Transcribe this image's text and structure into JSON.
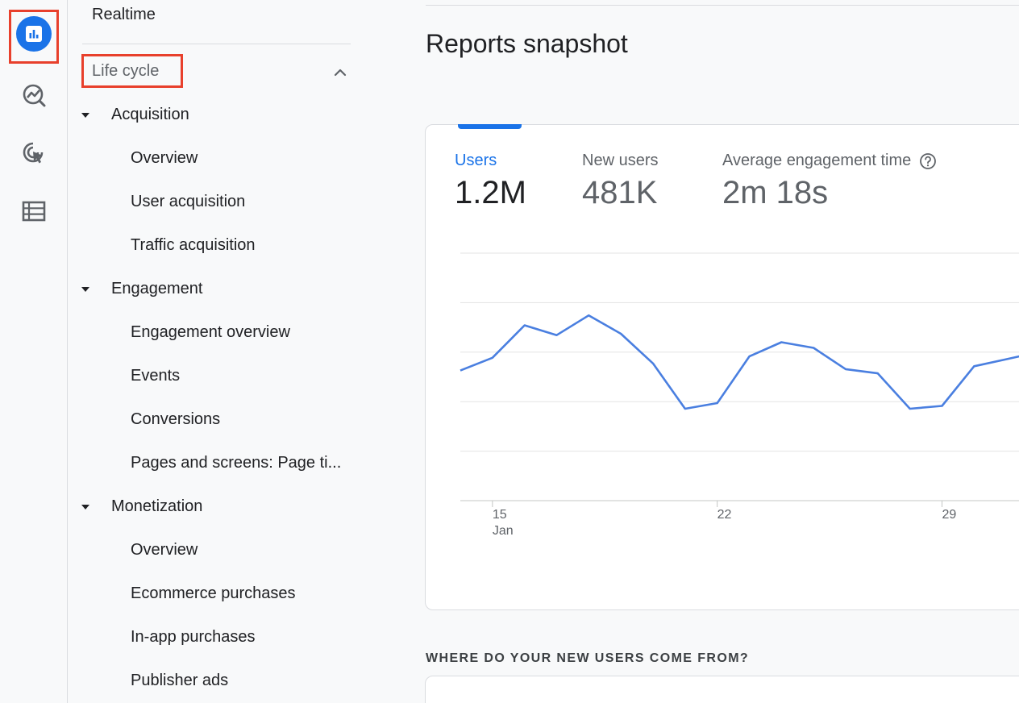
{
  "rail": {
    "items": [
      {
        "name": "reports-icon",
        "active": true
      },
      {
        "name": "explore-icon",
        "active": false
      },
      {
        "name": "advertising-icon",
        "active": false
      },
      {
        "name": "configure-icon",
        "active": false
      }
    ],
    "accent": "#1a73e8",
    "highlight": "#e8402c"
  },
  "nav": {
    "realtime": "Realtime",
    "section_label": "Life cycle",
    "groups": [
      {
        "label": "Acquisition",
        "items": [
          "Overview",
          "User acquisition",
          "Traffic acquisition"
        ]
      },
      {
        "label": "Engagement",
        "items": [
          "Engagement overview",
          "Events",
          "Conversions",
          "Pages and screens: Page ti..."
        ]
      },
      {
        "label": "Monetization",
        "items": [
          "Overview",
          "Ecommerce purchases",
          "In-app purchases",
          "Publisher ads"
        ]
      }
    ]
  },
  "main": {
    "title": "Reports snapshot",
    "metrics": [
      {
        "label": "Users",
        "value": "1.2M",
        "active": true
      },
      {
        "label": "New users",
        "value": "481K",
        "active": false
      },
      {
        "label": "Average engagement time",
        "value": "2m 18s",
        "active": false,
        "help": true
      }
    ],
    "section_heading": "WHERE DO YOUR NEW USERS COME FROM?"
  },
  "chart_data": {
    "type": "line",
    "x_ticks": [
      {
        "day": 15,
        "label": "15",
        "sublabel": "Jan"
      },
      {
        "day": 22,
        "label": "22"
      },
      {
        "day": 29,
        "label": "29"
      }
    ],
    "x": [
      14,
      15,
      16,
      17,
      18,
      19,
      20,
      21,
      22,
      23,
      24,
      25,
      26,
      27,
      28,
      29,
      30,
      31,
      32
    ],
    "series": [
      {
        "values": [
          0.42,
          0.51,
          0.74,
          0.67,
          0.81,
          0.68,
          0.47,
          0.15,
          0.19,
          0.52,
          0.62,
          0.58,
          0.43,
          0.4,
          0.15,
          0.17,
          0.45,
          0.5,
          0.55
        ],
        "color": "#4a7fe0"
      }
    ],
    "xlim": [
      14,
      32
    ],
    "ylim": [
      -0.5,
      1.25
    ],
    "grid": true,
    "color": "#4a7fe0"
  }
}
